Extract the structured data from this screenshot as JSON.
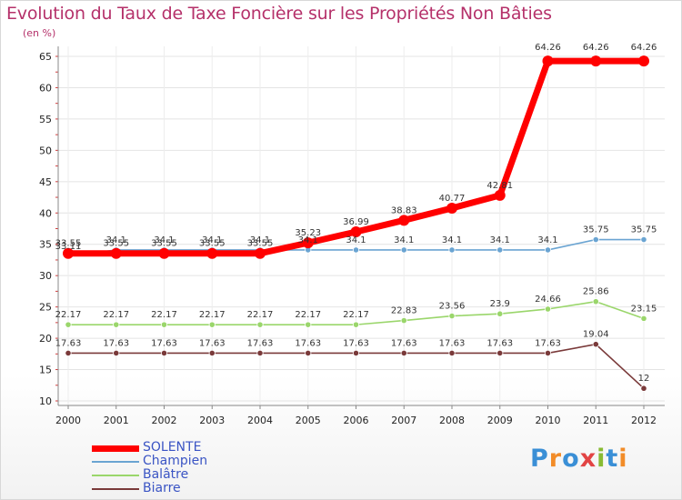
{
  "header": {
    "title": "Evolution du Taux de Taxe Foncière sur les Propriétés Non Bâties",
    "unit": "(en %)"
  },
  "logo": {
    "text": "Proxiti",
    "letters": [
      "P",
      "r",
      "o",
      "x",
      "i",
      "t",
      "i"
    ],
    "colors": [
      "#3a8fd6",
      "#f28c28",
      "#3a8fd6",
      "#e24444",
      "#88bb33",
      "#3a8fd6",
      "#f28c28"
    ]
  },
  "chart_data": {
    "type": "line",
    "x": [
      "2000",
      "2001",
      "2002",
      "2003",
      "2004",
      "2005",
      "2006",
      "2007",
      "2008",
      "2009",
      "2010",
      "2011",
      "2012"
    ],
    "ylim": [
      10,
      65
    ],
    "yticks": [
      "10",
      "15",
      "20",
      "25",
      "30",
      "35",
      "40",
      "45",
      "50",
      "55",
      "60",
      "65"
    ],
    "grid": true,
    "legend_position": "bottom-left",
    "series": [
      {
        "name": "SOLENTE",
        "color": "#ff0000",
        "values": [
          33.55,
          33.55,
          33.55,
          33.55,
          33.55,
          35.23,
          36.99,
          38.83,
          40.77,
          42.81,
          64.26,
          64.26,
          64.26
        ],
        "labels": [
          "33.55",
          "33.55",
          "33.55",
          "33.55",
          "33.55",
          "35.23",
          "36.99",
          "38.83",
          "40.77",
          "42.81",
          "64.26",
          "64.26",
          "64.26"
        ]
      },
      {
        "name": "Champien",
        "color": "#6aa4d2",
        "values": [
          33.11,
          34.1,
          34.1,
          34.1,
          34.1,
          34.1,
          34.1,
          34.1,
          34.1,
          34.1,
          34.1,
          35.75,
          35.75
        ],
        "labels": [
          "33.11",
          "34.1",
          "34.1",
          "34.1",
          "34.1",
          "34.1",
          "34.1",
          "34.1",
          "34.1",
          "34.1",
          "34.1",
          "35.75",
          "35.75"
        ]
      },
      {
        "name": "Balâtre",
        "color": "#9ad66b",
        "values": [
          22.17,
          22.17,
          22.17,
          22.17,
          22.17,
          22.17,
          22.17,
          22.83,
          23.56,
          23.9,
          24.66,
          25.86,
          23.15
        ],
        "labels": [
          "22.17",
          "22.17",
          "22.17",
          "22.17",
          "22.17",
          "22.17",
          "22.17",
          "22.83",
          "23.56",
          "23.9",
          "24.66",
          "25.86",
          "23.15"
        ]
      },
      {
        "name": "Biarre",
        "color": "#7a3a3a",
        "values": [
          17.63,
          17.63,
          17.63,
          17.63,
          17.63,
          17.63,
          17.63,
          17.63,
          17.63,
          17.63,
          17.63,
          19.04,
          12
        ],
        "labels": [
          "17.63",
          "17.63",
          "17.63",
          "17.63",
          "17.63",
          "17.63",
          "17.63",
          "17.63",
          "17.63",
          "17.63",
          "17.63",
          "19.04",
          "12"
        ]
      }
    ]
  }
}
